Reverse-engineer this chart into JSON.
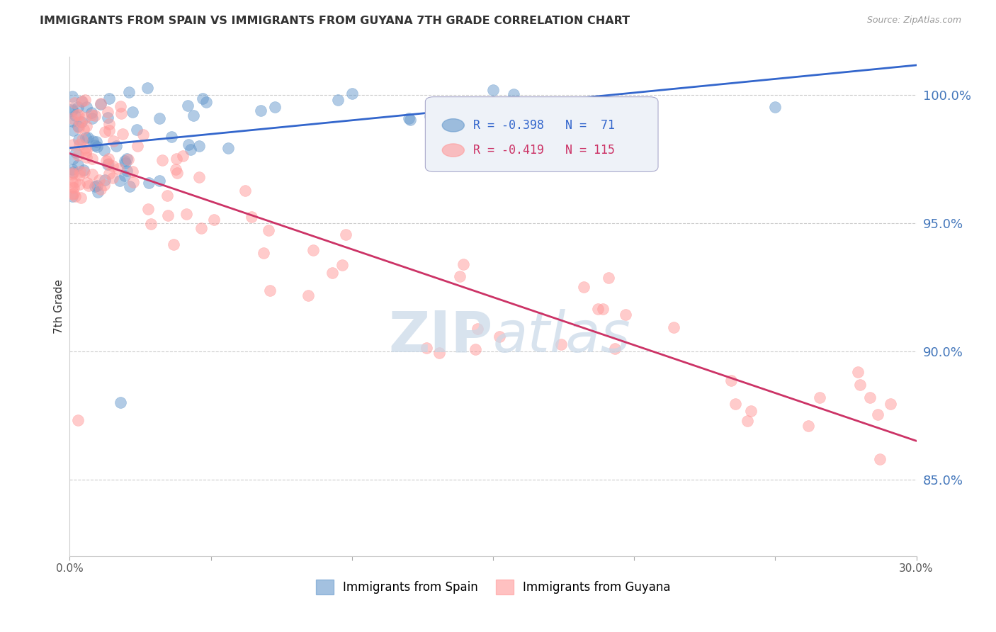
{
  "title": "IMMIGRANTS FROM SPAIN VS IMMIGRANTS FROM GUYANA 7TH GRADE CORRELATION CHART",
  "source": "Source: ZipAtlas.com",
  "ylabel": "7th Grade",
  "ytick_labels": [
    "100.0%",
    "95.0%",
    "90.0%",
    "85.0%"
  ],
  "ytick_values": [
    1.0,
    0.95,
    0.9,
    0.85
  ],
  "xlim": [
    0.0,
    0.3
  ],
  "ylim": [
    0.82,
    1.015
  ],
  "legend_spain": "Immigrants from Spain",
  "legend_guyana": "Immigrants from Guyana",
  "r_spain": -0.398,
  "n_spain": 71,
  "r_guyana": -0.419,
  "n_guyana": 115,
  "spain_color": "#6699cc",
  "guyana_color": "#ff9999",
  "spain_line_color": "#3366cc",
  "guyana_line_color": "#cc3366",
  "background_color": "#ffffff",
  "title_color": "#333333",
  "source_color": "#999999",
  "ytick_color": "#4477bb",
  "grid_color": "#cccccc",
  "watermark_color": "#c8d8e8"
}
